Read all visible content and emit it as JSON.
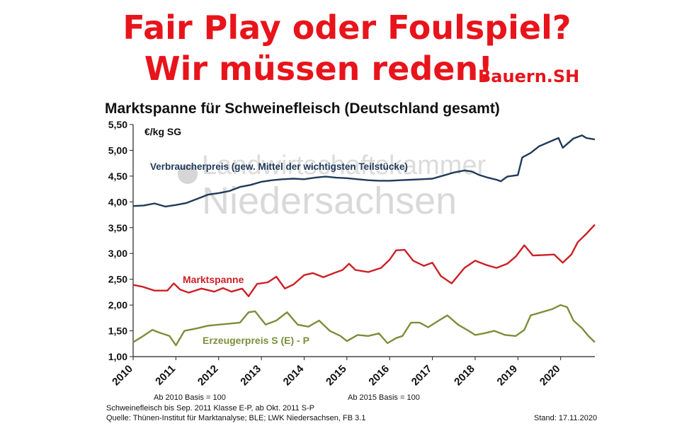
{
  "headline": {
    "line1": "Fair Play oder Foulspiel?",
    "line2": "Wir müssen reden!",
    "brand": "Bauern.SH"
  },
  "watermark": {
    "line1": "Landwirtschaftskammer",
    "line2": "Niedersachsen"
  },
  "footnotes": {
    "basis_2010": "Ab 2010 Basis = 100",
    "basis_2015": "Ab 2015 Basis = 100",
    "line1": "Schweinefleisch bis Sep. 2011 Klasse E-P, ab Okt. 2011 S-P",
    "line2": "Quelle: Thünen-Institut für Marktanalyse; BLE; LWK Niedersachsen, FB 3.1",
    "stand": "Stand: 17.11.2020"
  },
  "chart_data": {
    "type": "line",
    "title": "Marktspanne für Schweinefleisch (Deutschland gesamt)",
    "unit_label": "€/kg SG",
    "xlim": [
      2010,
      2020.8
    ],
    "ylim": [
      1.0,
      5.5
    ],
    "x_ticks": [
      "2010",
      "2011",
      "2012",
      "2013",
      "2014",
      "2015",
      "2016",
      "2017",
      "2018",
      "2019",
      "2020"
    ],
    "y_ticks": [
      "1,00",
      "1,50",
      "2,00",
      "2,50",
      "3,00",
      "3,50",
      "4,00",
      "4,50",
      "5,00",
      "5,50"
    ],
    "grid": false,
    "series": [
      {
        "name": "Verbraucherpreis (gew. Mittel der wichtigsten Teilstücke)",
        "color": "#1f3a5a",
        "points": [
          [
            2010.0,
            3.92
          ],
          [
            2010.25,
            3.93
          ],
          [
            2010.5,
            3.97
          ],
          [
            2010.75,
            3.91
          ],
          [
            2011.0,
            3.94
          ],
          [
            2011.25,
            3.98
          ],
          [
            2011.5,
            4.06
          ],
          [
            2011.75,
            4.14
          ],
          [
            2012.0,
            4.17
          ],
          [
            2012.25,
            4.21
          ],
          [
            2012.5,
            4.29
          ],
          [
            2012.75,
            4.33
          ],
          [
            2013.0,
            4.39
          ],
          [
            2013.25,
            4.42
          ],
          [
            2013.5,
            4.44
          ],
          [
            2013.75,
            4.45
          ],
          [
            2014.0,
            4.44
          ],
          [
            2014.25,
            4.47
          ],
          [
            2014.5,
            4.49
          ],
          [
            2014.75,
            4.47
          ],
          [
            2015.0,
            4.46
          ],
          [
            2015.25,
            4.44
          ],
          [
            2015.5,
            4.42
          ],
          [
            2015.75,
            4.41
          ],
          [
            2016.0,
            4.41
          ],
          [
            2016.25,
            4.42
          ],
          [
            2016.5,
            4.43
          ],
          [
            2016.75,
            4.44
          ],
          [
            2017.0,
            4.45
          ],
          [
            2017.25,
            4.51
          ],
          [
            2017.5,
            4.57
          ],
          [
            2017.75,
            4.61
          ],
          [
            2017.92,
            4.59
          ],
          [
            2018.1,
            4.52
          ],
          [
            2018.3,
            4.47
          ],
          [
            2018.5,
            4.43
          ],
          [
            2018.6,
            4.4
          ],
          [
            2018.75,
            4.49
          ],
          [
            2019.0,
            4.52
          ],
          [
            2019.1,
            4.86
          ],
          [
            2019.3,
            4.95
          ],
          [
            2019.5,
            5.08
          ],
          [
            2019.75,
            5.17
          ],
          [
            2019.95,
            5.24
          ],
          [
            2020.05,
            5.05
          ],
          [
            2020.3,
            5.23
          ],
          [
            2020.5,
            5.29
          ],
          [
            2020.6,
            5.24
          ],
          [
            2020.8,
            5.21
          ]
        ]
      },
      {
        "name": "Marktspanne",
        "color": "#cc1f26",
        "points": [
          [
            2010.0,
            2.39
          ],
          [
            2010.2,
            2.36
          ],
          [
            2010.5,
            2.28
          ],
          [
            2010.8,
            2.28
          ],
          [
            2010.95,
            2.42
          ],
          [
            2011.1,
            2.3
          ],
          [
            2011.3,
            2.24
          ],
          [
            2011.6,
            2.32
          ],
          [
            2011.9,
            2.26
          ],
          [
            2012.1,
            2.33
          ],
          [
            2012.3,
            2.26
          ],
          [
            2012.55,
            2.32
          ],
          [
            2012.7,
            2.17
          ],
          [
            2012.9,
            2.41
          ],
          [
            2013.15,
            2.44
          ],
          [
            2013.35,
            2.55
          ],
          [
            2013.55,
            2.32
          ],
          [
            2013.75,
            2.4
          ],
          [
            2014.0,
            2.58
          ],
          [
            2014.2,
            2.62
          ],
          [
            2014.45,
            2.54
          ],
          [
            2014.7,
            2.62
          ],
          [
            2014.9,
            2.68
          ],
          [
            2015.05,
            2.8
          ],
          [
            2015.2,
            2.68
          ],
          [
            2015.5,
            2.64
          ],
          [
            2015.8,
            2.72
          ],
          [
            2016.0,
            2.88
          ],
          [
            2016.15,
            3.06
          ],
          [
            2016.35,
            3.07
          ],
          [
            2016.55,
            2.86
          ],
          [
            2016.8,
            2.76
          ],
          [
            2017.0,
            2.82
          ],
          [
            2017.2,
            2.56
          ],
          [
            2017.45,
            2.42
          ],
          [
            2017.75,
            2.72
          ],
          [
            2018.0,
            2.86
          ],
          [
            2018.25,
            2.78
          ],
          [
            2018.5,
            2.72
          ],
          [
            2018.75,
            2.8
          ],
          [
            2018.95,
            2.94
          ],
          [
            2019.15,
            3.16
          ],
          [
            2019.35,
            2.96
          ],
          [
            2019.6,
            2.97
          ],
          [
            2019.85,
            2.98
          ],
          [
            2020.05,
            2.82
          ],
          [
            2020.25,
            2.98
          ],
          [
            2020.4,
            3.22
          ],
          [
            2020.6,
            3.38
          ],
          [
            2020.8,
            3.56
          ]
        ]
      },
      {
        "name": "Erzeugerpreis S (E) - P",
        "color": "#7a8f3a",
        "points": [
          [
            2010.0,
            1.28
          ],
          [
            2010.2,
            1.38
          ],
          [
            2010.45,
            1.52
          ],
          [
            2010.6,
            1.47
          ],
          [
            2010.85,
            1.4
          ],
          [
            2011.0,
            1.22
          ],
          [
            2011.2,
            1.5
          ],
          [
            2011.5,
            1.55
          ],
          [
            2011.75,
            1.6
          ],
          [
            2012.0,
            1.62
          ],
          [
            2012.25,
            1.64
          ],
          [
            2012.5,
            1.66
          ],
          [
            2012.7,
            1.86
          ],
          [
            2012.85,
            1.88
          ],
          [
            2013.1,
            1.62
          ],
          [
            2013.35,
            1.7
          ],
          [
            2013.6,
            1.86
          ],
          [
            2013.85,
            1.62
          ],
          [
            2014.1,
            1.58
          ],
          [
            2014.35,
            1.7
          ],
          [
            2014.6,
            1.5
          ],
          [
            2014.85,
            1.4
          ],
          [
            2015.0,
            1.3
          ],
          [
            2015.25,
            1.42
          ],
          [
            2015.5,
            1.4
          ],
          [
            2015.75,
            1.45
          ],
          [
            2015.95,
            1.26
          ],
          [
            2016.15,
            1.36
          ],
          [
            2016.3,
            1.4
          ],
          [
            2016.5,
            1.66
          ],
          [
            2016.7,
            1.66
          ],
          [
            2016.9,
            1.57
          ],
          [
            2017.15,
            1.7
          ],
          [
            2017.35,
            1.8
          ],
          [
            2017.6,
            1.62
          ],
          [
            2017.85,
            1.5
          ],
          [
            2018.0,
            1.42
          ],
          [
            2018.2,
            1.45
          ],
          [
            2018.45,
            1.5
          ],
          [
            2018.7,
            1.42
          ],
          [
            2018.95,
            1.4
          ],
          [
            2019.15,
            1.52
          ],
          [
            2019.3,
            1.8
          ],
          [
            2019.55,
            1.86
          ],
          [
            2019.8,
            1.92
          ],
          [
            2020.0,
            2.0
          ],
          [
            2020.15,
            1.96
          ],
          [
            2020.3,
            1.7
          ],
          [
            2020.5,
            1.55
          ],
          [
            2020.65,
            1.4
          ],
          [
            2020.8,
            1.28
          ]
        ]
      }
    ]
  }
}
